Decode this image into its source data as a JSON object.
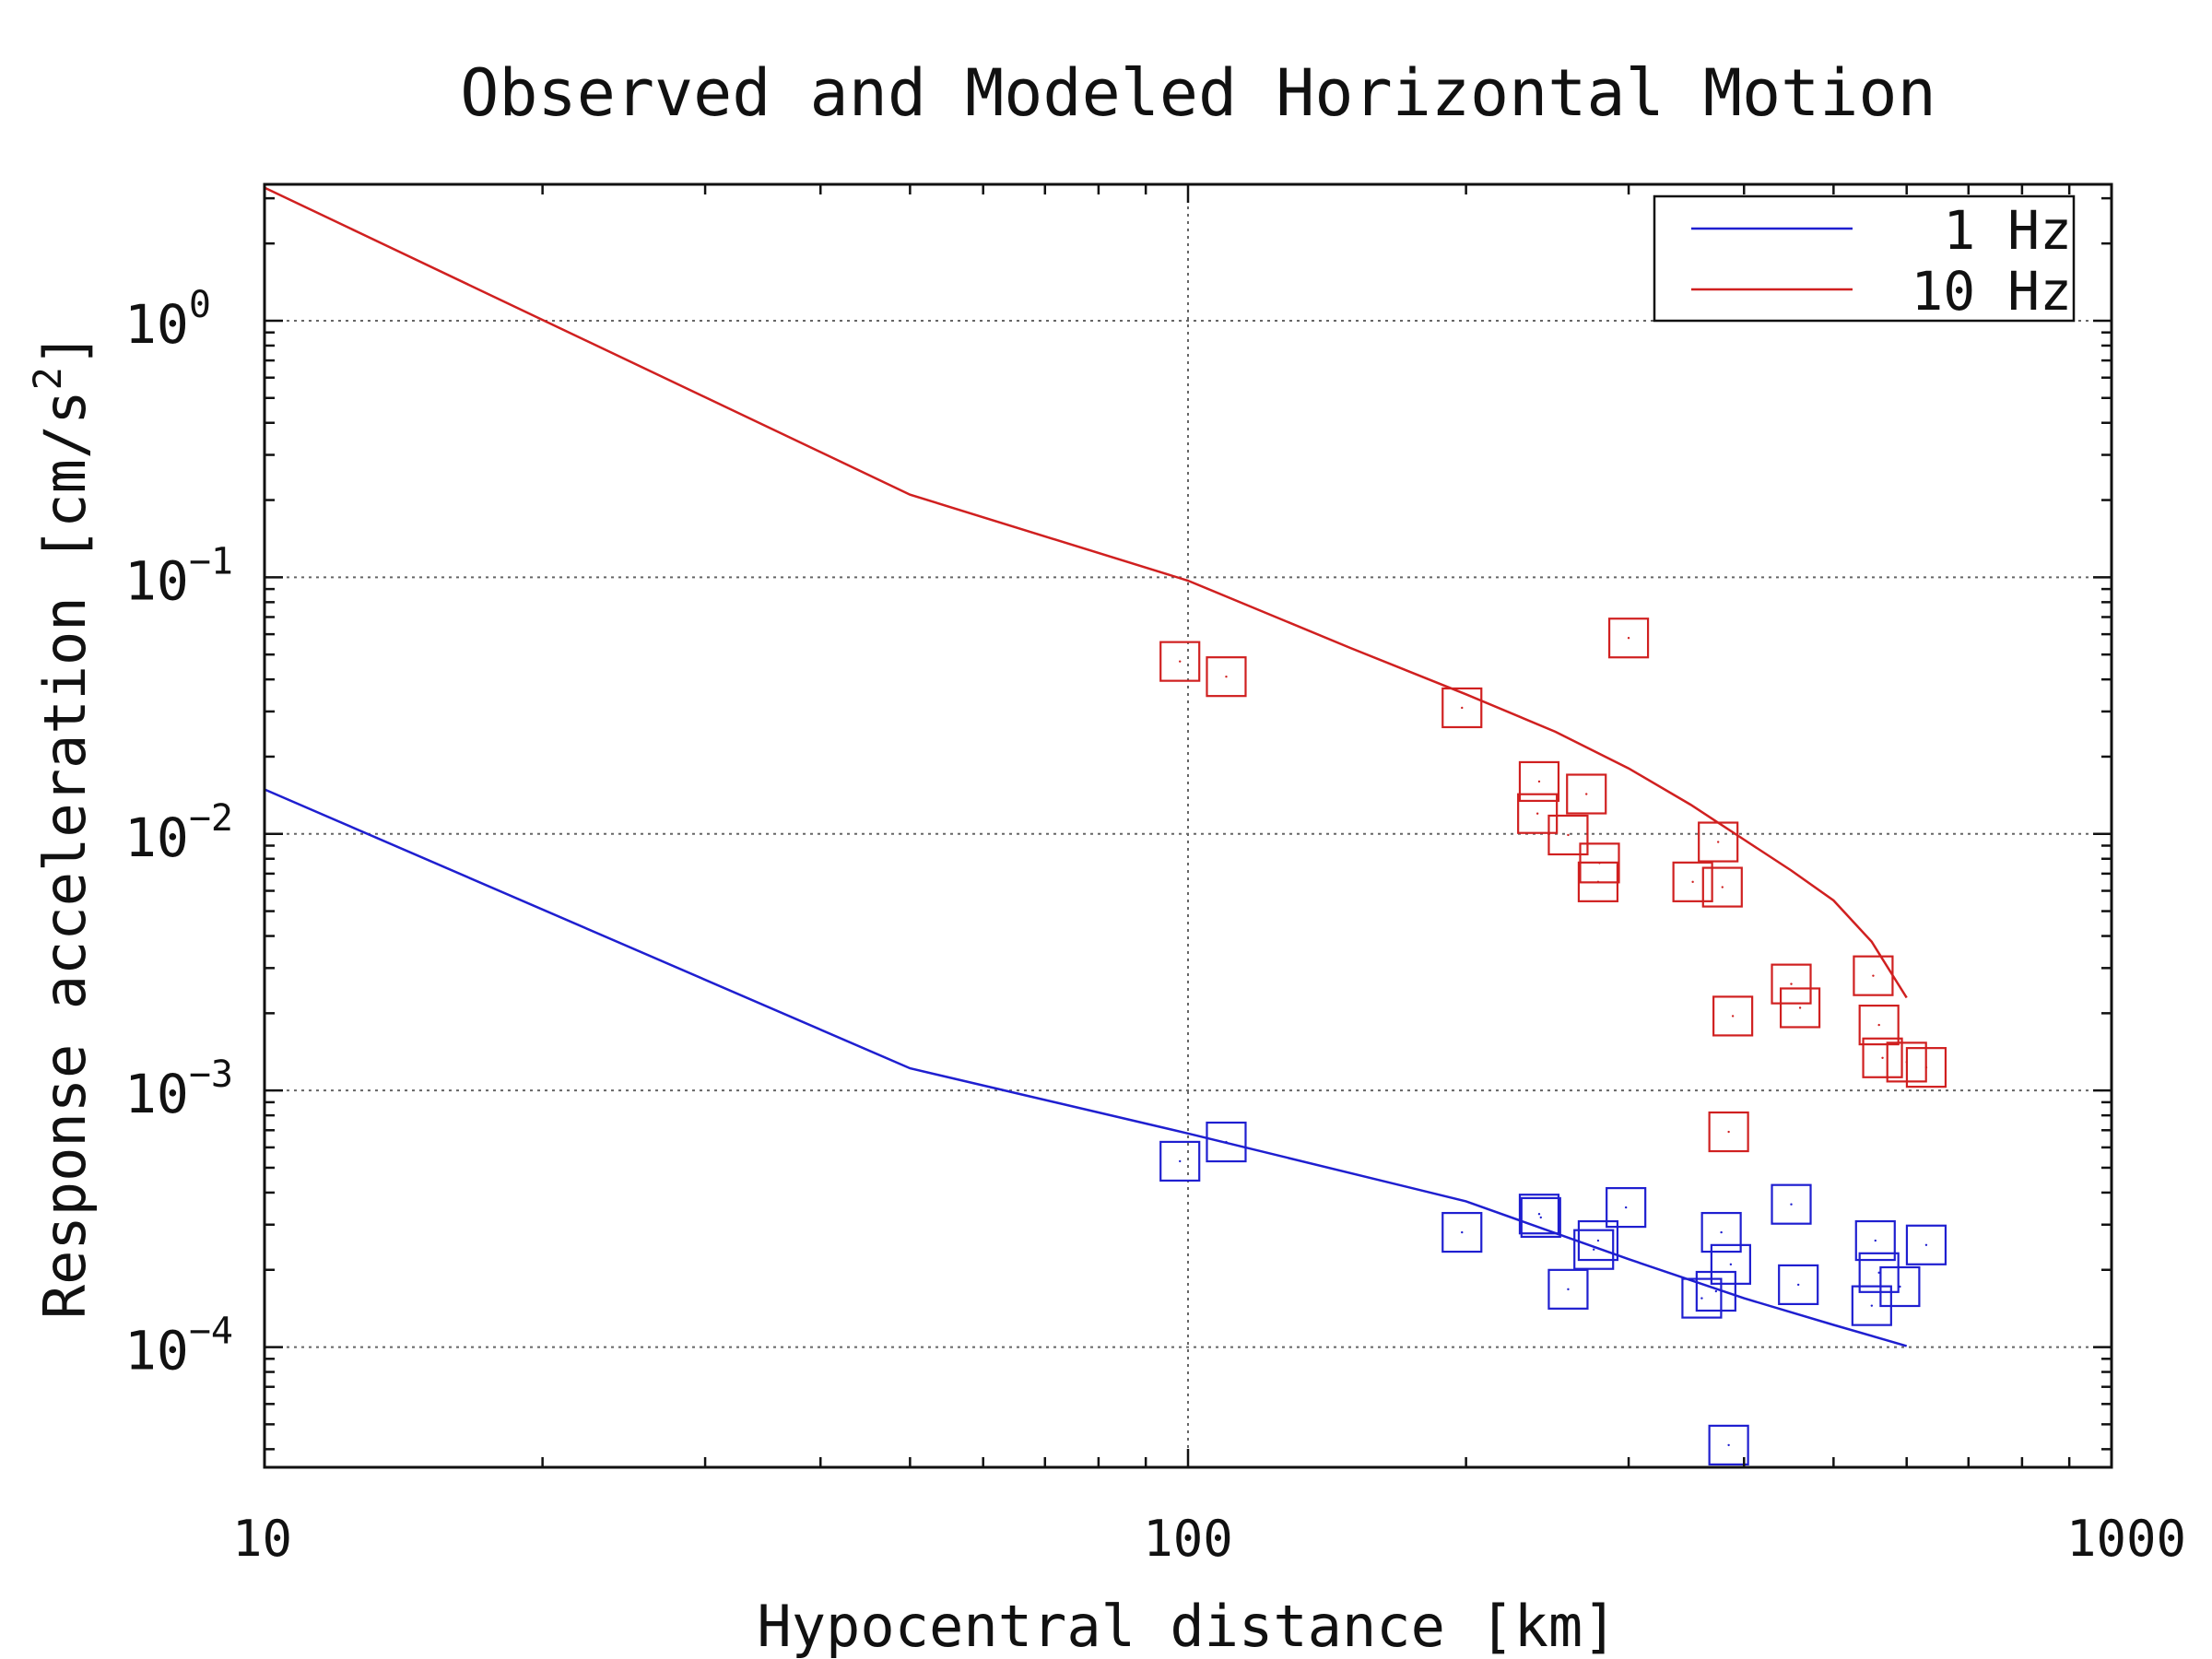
{
  "chart_data": {
    "type": "scatter",
    "title": "Observed and Modeled Horizontal Motion",
    "xlabel": "Hypocentral distance [km]",
    "ylabel": {
      "text": "Response acceleration [cm/s",
      "sup": "2",
      "close": "]"
    },
    "xscale": "log",
    "yscale": "log",
    "xlim": [
      10,
      1000
    ],
    "ylim": [
      3.4e-05,
      3.4
    ],
    "x_ticks": [
      {
        "value": 10,
        "label": "10"
      },
      {
        "value": 100,
        "label": "100"
      },
      {
        "value": 1000,
        "label": "1000"
      }
    ],
    "y_ticks": [
      {
        "value": 0.0001,
        "base": "10",
        "exp": "−4"
      },
      {
        "value": 0.001,
        "base": "10",
        "exp": "−3"
      },
      {
        "value": 0.01,
        "base": "10",
        "exp": "−2"
      },
      {
        "value": 0.1,
        "base": "10",
        "exp": "−1"
      },
      {
        "value": 1,
        "base": "10",
        "exp": "0"
      }
    ],
    "grid": true,
    "legend_position": "top-right",
    "series": [
      {
        "name": "1 Hz",
        "color": "#1f1fd0",
        "model_line": [
          [
            10,
            0.0149
          ],
          [
            50,
            0.00122
          ],
          [
            100,
            0.00068
          ],
          [
            200,
            0.00037
          ],
          [
            300,
            0.00022
          ],
          [
            400,
            0.000155
          ],
          [
            500,
            0.000122
          ],
          [
            600,
            0.000101
          ]
        ],
        "observed": [
          [
            98,
            0.00053
          ],
          [
            110,
            0.00063
          ],
          [
            198,
            0.00028
          ],
          [
            240,
            0.00033
          ],
          [
            241,
            0.00032
          ],
          [
            258,
            0.000168
          ],
          [
            275,
            0.00024
          ],
          [
            278,
            0.00026
          ],
          [
            298,
            0.00035
          ],
          [
            360,
            0.000155
          ],
          [
            373,
            0.000165
          ],
          [
            378,
            0.00028
          ],
          [
            387,
            0.00021
          ],
          [
            385,
            4.15e-05
          ],
          [
            450,
            0.00036
          ],
          [
            458,
            0.000175
          ],
          [
            550,
            0.000145
          ],
          [
            555,
            0.00026
          ],
          [
            560,
            0.000195
          ],
          [
            590,
            0.000172
          ],
          [
            630,
            0.00025
          ]
        ]
      },
      {
        "name": "10 Hz",
        "color": "#d02020",
        "model_line": [
          [
            10,
            3.3
          ],
          [
            50,
            0.21
          ],
          [
            100,
            0.097
          ],
          [
            150,
            0.053
          ],
          [
            200,
            0.035
          ],
          [
            250,
            0.025
          ],
          [
            300,
            0.018
          ],
          [
            350,
            0.013
          ],
          [
            400,
            0.0095
          ],
          [
            450,
            0.0072
          ],
          [
            500,
            0.0055
          ],
          [
            550,
            0.0038
          ],
          [
            600,
            0.0023
          ]
        ],
        "observed": [
          [
            98,
            0.047
          ],
          [
            110,
            0.041
          ],
          [
            198,
            0.031
          ],
          [
            240,
            0.016
          ],
          [
            239,
            0.012
          ],
          [
            258,
            0.0099
          ],
          [
            270,
            0.0143
          ],
          [
            279,
            0.0077
          ],
          [
            278,
            0.0065
          ],
          [
            300,
            0.058
          ],
          [
            352,
            0.0065
          ],
          [
            375,
            0.0093
          ],
          [
            379,
            0.0062
          ],
          [
            385,
            0.00069
          ],
          [
            389,
            0.00195
          ],
          [
            450,
            0.0026
          ],
          [
            460,
            0.0021
          ],
          [
            552,
            0.0028
          ],
          [
            560,
            0.0018
          ],
          [
            565,
            0.00134
          ],
          [
            600,
            0.00129
          ],
          [
            630,
            0.00123
          ]
        ]
      }
    ]
  }
}
